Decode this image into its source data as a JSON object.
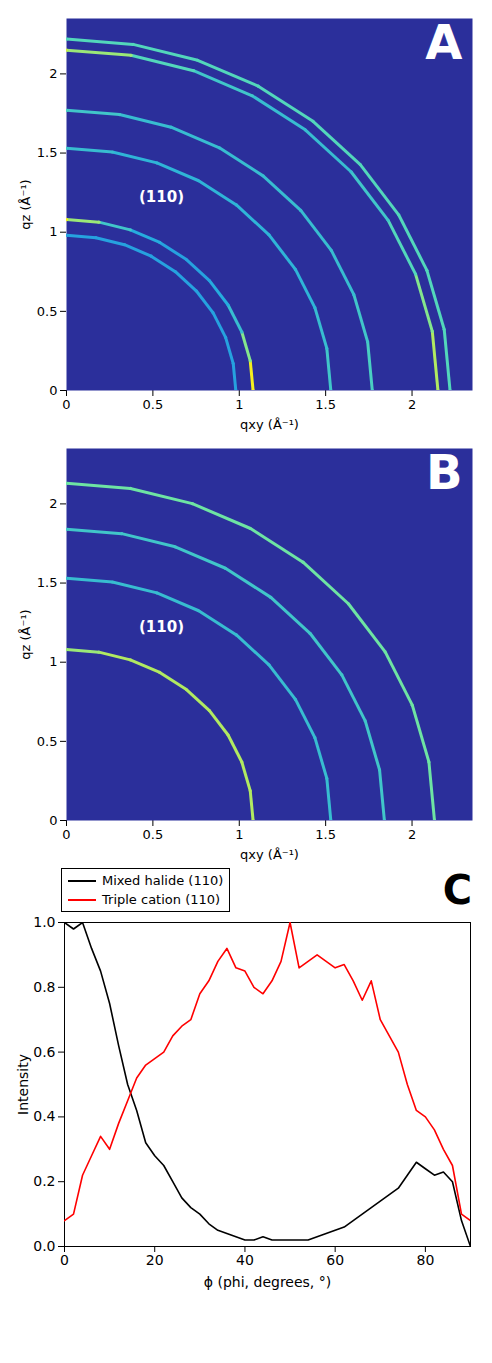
{
  "chart_data": [
    {
      "type": "rings",
      "panel": "A",
      "xlabel": "qxy (Å⁻¹)",
      "ylabel": "qz (Å⁻¹)",
      "xlim": [
        0,
        2.35
      ],
      "xticks": [
        0,
        0.5,
        1,
        1.5,
        2
      ],
      "ylim": [
        0,
        2.35
      ],
      "yticks": [
        0,
        0.5,
        1,
        1.5,
        2
      ],
      "annotations": [
        {
          "text": "(110)",
          "x": 0.55,
          "y": 1.22
        }
      ],
      "intensity_range": [
        0,
        1
      ],
      "phi": [
        0,
        10,
        20,
        30,
        40,
        50,
        60,
        70,
        80,
        90
      ],
      "rings": [
        {
          "q": 0.98,
          "intensity": [
            0.3,
            0.3,
            0.3,
            0.3,
            0.3,
            0.3,
            0.3,
            0.3,
            0.3,
            0.3
          ]
        },
        {
          "q": 1.08,
          "intensity": [
            1,
            0.75,
            0.45,
            0.35,
            0.3,
            0.3,
            0.35,
            0.5,
            0.8,
            1
          ]
        },
        {
          "q": 1.53,
          "intensity": [
            0.5,
            0.45,
            0.4,
            0.4,
            0.4,
            0.4,
            0.4,
            0.4,
            0.45,
            0.5
          ]
        },
        {
          "q": 1.77,
          "intensity": [
            0.55,
            0.5,
            0.45,
            0.45,
            0.45,
            0.45,
            0.45,
            0.45,
            0.5,
            0.55
          ]
        },
        {
          "q": 2.15,
          "intensity": [
            0.85,
            0.75,
            0.6,
            0.5,
            0.45,
            0.45,
            0.5,
            0.6,
            0.8,
            0.9
          ]
        },
        {
          "q": 2.22,
          "intensity": [
            0.6,
            0.6,
            0.6,
            0.6,
            0.6,
            0.6,
            0.6,
            0.6,
            0.6,
            0.6
          ]
        }
      ]
    },
    {
      "type": "rings",
      "panel": "B",
      "xlabel": "qxy (Å⁻¹)",
      "ylabel": "qz (Å⁻¹)",
      "xlim": [
        0,
        2.35
      ],
      "xticks": [
        0,
        0.5,
        1,
        1.5,
        2
      ],
      "ylim": [
        0,
        2.35
      ],
      "yticks": [
        0,
        0.5,
        1,
        1.5,
        2
      ],
      "annotations": [
        {
          "text": "(110)",
          "x": 0.55,
          "y": 1.22
        }
      ],
      "intensity_range": [
        0,
        1
      ],
      "phi": [
        0,
        10,
        20,
        30,
        40,
        50,
        60,
        70,
        80,
        90
      ],
      "rings": [
        {
          "q": 1.08,
          "intensity": [
            0.85,
            0.85,
            0.85,
            0.85,
            0.85,
            0.85,
            0.85,
            0.85,
            0.8,
            0.8
          ]
        },
        {
          "q": 1.53,
          "intensity": [
            0.45,
            0.45,
            0.45,
            0.45,
            0.45,
            0.45,
            0.45,
            0.45,
            0.45,
            0.45
          ]
        },
        {
          "q": 1.84,
          "intensity": [
            0.5,
            0.5,
            0.5,
            0.5,
            0.5,
            0.5,
            0.5,
            0.5,
            0.5,
            0.5
          ]
        },
        {
          "q": 2.13,
          "intensity": [
            0.7,
            0.7,
            0.7,
            0.7,
            0.7,
            0.7,
            0.7,
            0.7,
            0.7,
            0.7
          ]
        }
      ]
    },
    {
      "type": "line",
      "panel": "C",
      "xlabel": "ϕ (phi, degrees, °)",
      "ylabel": "Intensity",
      "xlim": [
        0,
        90
      ],
      "xticks": [
        0,
        20,
        40,
        60,
        80
      ],
      "ylim": [
        0,
        1
      ],
      "yticks": [
        {
          "value": 0,
          "label": "0.0"
        },
        {
          "value": 0.2,
          "label": "0.2"
        },
        {
          "value": 0.4,
          "label": "0.4"
        },
        {
          "value": 0.6,
          "label": "0.6"
        },
        {
          "value": 0.8,
          "label": "0.8"
        },
        {
          "value": 1,
          "label": "1.0"
        }
      ],
      "legend": "top",
      "x": [
        0,
        2,
        4,
        6,
        8,
        10,
        12,
        14,
        16,
        18,
        20,
        22,
        24,
        26,
        28,
        30,
        32,
        34,
        36,
        38,
        40,
        42,
        44,
        46,
        48,
        50,
        52,
        54,
        56,
        58,
        60,
        62,
        64,
        66,
        68,
        70,
        72,
        74,
        76,
        78,
        80,
        82,
        84,
        86,
        88,
        90
      ],
      "series": [
        {
          "name": "Mixed halide (110)",
          "color": "#000000",
          "values": [
            1.0,
            0.98,
            1.0,
            0.92,
            0.85,
            0.75,
            0.62,
            0.5,
            0.42,
            0.32,
            0.28,
            0.25,
            0.2,
            0.15,
            0.12,
            0.1,
            0.07,
            0.05,
            0.04,
            0.03,
            0.02,
            0.02,
            0.03,
            0.02,
            0.02,
            0.02,
            0.02,
            0.02,
            0.03,
            0.04,
            0.05,
            0.06,
            0.08,
            0.1,
            0.12,
            0.14,
            0.16,
            0.18,
            0.22,
            0.26,
            0.24,
            0.22,
            0.23,
            0.2,
            0.08,
            0.0
          ]
        },
        {
          "name": "Triple cation  (110)",
          "color": "#ff0000",
          "values": [
            0.08,
            0.1,
            0.22,
            0.28,
            0.34,
            0.3,
            0.38,
            0.45,
            0.52,
            0.56,
            0.58,
            0.6,
            0.65,
            0.68,
            0.7,
            0.78,
            0.82,
            0.88,
            0.92,
            0.86,
            0.85,
            0.8,
            0.78,
            0.82,
            0.88,
            1.0,
            0.86,
            0.88,
            0.9,
            0.88,
            0.86,
            0.87,
            0.82,
            0.76,
            0.82,
            0.7,
            0.65,
            0.6,
            0.5,
            0.42,
            0.4,
            0.36,
            0.3,
            0.25,
            0.1,
            0.08
          ]
        }
      ]
    }
  ]
}
